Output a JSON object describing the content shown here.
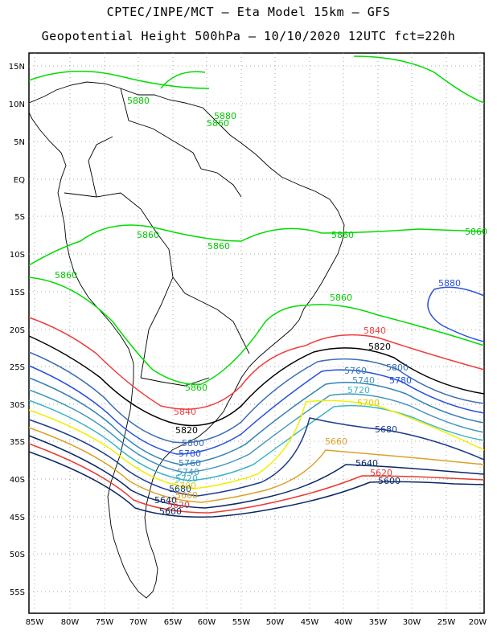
{
  "title_line1": "CPTEC/INPE/MCT –  Eta Model 15km – GFS",
  "title_line2": "Geopotential Height 500hPa – 10/10/2020 12UTC fct=220h",
  "lat_labels": [
    "15N",
    "10N",
    "5N",
    "EQ",
    "5S",
    "10S",
    "15S",
    "20S",
    "25S",
    "30S",
    "35S",
    "40S",
    "45S",
    "50S",
    "55S"
  ],
  "lon_labels": [
    "85W",
    "80W",
    "75W",
    "70W",
    "65W",
    "60W",
    "55W",
    "50W",
    "45W",
    "40W",
    "35W",
    "30W",
    "25W",
    "20W"
  ],
  "colors": {
    "c5880": "#00c800",
    "c5860": "#00dc00",
    "c5840": "#f03c3c",
    "c5820": "#000000",
    "c5800": "#3c6eb4",
    "c5780": "#2850dc",
    "c5760": "#3282b4",
    "c5740": "#4696be",
    "c5720": "#3cb4c8",
    "c5700": "#f0f000",
    "c5680": "#1e3c8c",
    "c5660": "#dca028",
    "c5640": "#0a2864",
    "c5620": "#e63c32",
    "c5600": "#0a2864",
    "c5880e": "#2850dc"
  },
  "contour_labels": {
    "l5880_a": "5880",
    "l5880_b": "5880",
    "l5860_a": "5860",
    "l5860_b": "5860",
    "l5860_c": "5860",
    "l5860_d": "5860",
    "l5860_e": "5860",
    "l5860_f": "5860",
    "l5860_g": "5860",
    "l5860_h": "5860",
    "l5880_east": "5880",
    "l5840_e": "5840",
    "l5840_w": "5840",
    "l5820_e": "5820",
    "l5820_w": "5820",
    "l5800_e": "5800",
    "l5800_w": "5800",
    "l5780_e": "5780",
    "l5780_w": "5780",
    "l5760_e": "5760",
    "l5760_w": "5760",
    "l5740_e": "5740",
    "l5740_w": "5740",
    "l5720_e": "5720",
    "l5720_w": "5720",
    "l5700_e": "5700",
    "l5700_w": "5700",
    "l5680_e": "5680",
    "l5680_w": "5680",
    "l5660_e": "5660",
    "l5660_w": "5660",
    "l5640_e": "5640",
    "l5640_w": "5640",
    "l5620_e": "5620",
    "l5620_w": "5620",
    "l5600_e": "5600",
    "l5600_w": "5600"
  }
}
